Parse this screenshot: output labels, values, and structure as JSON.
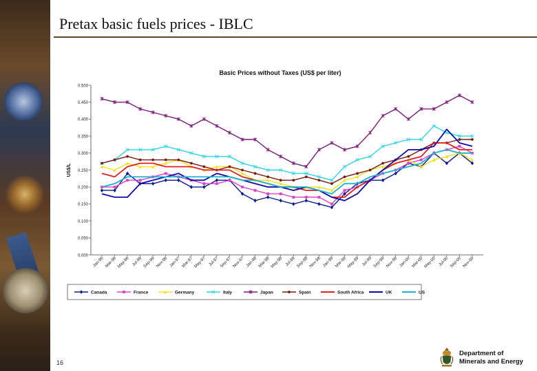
{
  "slide": {
    "title": "Pretax basic fuels prices - IBLC",
    "page_number": "16",
    "department_line1": "Department of",
    "department_line2": "Minerals and Energy"
  },
  "colors": {
    "canada": "#0a1a8c",
    "france": "#e040c8",
    "germany": "#f0e21c",
    "italy": "#2ad6e6",
    "japan": "#7a1a7a",
    "spain": "#7a1a10",
    "south_africa": "#e02020",
    "uk": "#0a0aa8",
    "us": "#18b2cc"
  },
  "chart_data": {
    "type": "line",
    "title": "Basic Prices without Taxes (US$ per liter)",
    "xlabel": "",
    "ylabel": "US$/L",
    "ylim": [
      0,
      0.5
    ],
    "yticks": [
      "0.000",
      "0.050",
      "0.100",
      "0.150",
      "0.200",
      "0.250",
      "0.300",
      "0.350",
      "0.400",
      "0.450",
      "0.500"
    ],
    "grid": false,
    "legend_position": "bottom",
    "x_tick_labels": [
      "Jan-96",
      "Mar-96",
      "May-96",
      "Jul-96",
      "Sep-96",
      "Nov-96",
      "Jan-97",
      "Mar-97",
      "May-97",
      "Jul-97",
      "Sep-97",
      "Nov-97",
      "Jan-98",
      "Mar-98",
      "May-98",
      "Jul-98",
      "Sep-98",
      "Nov-98",
      "Jan-99",
      "Mar-99",
      "May-99",
      "Jul-99",
      "Sep-99",
      "Nov-99",
      "Jan-00",
      "Mar-00",
      "May-00",
      "Jul-00",
      "Sep-00",
      "Nov-00"
    ],
    "n_points": 30,
    "series": [
      {
        "name": "Canada",
        "key": "canada",
        "marker": "diamond",
        "values": [
          0.19,
          0.19,
          0.24,
          0.21,
          0.21,
          0.22,
          0.22,
          0.2,
          0.2,
          0.22,
          0.22,
          0.18,
          0.16,
          0.17,
          0.16,
          0.15,
          0.16,
          0.15,
          0.14,
          0.18,
          0.21,
          0.22,
          0.22,
          0.24,
          0.27,
          0.26,
          0.3,
          0.27,
          0.3,
          0.27
        ]
      },
      {
        "name": "France",
        "key": "france",
        "marker": "square",
        "values": [
          0.2,
          0.2,
          0.22,
          0.22,
          0.23,
          0.24,
          0.23,
          0.22,
          0.21,
          0.21,
          0.22,
          0.2,
          0.19,
          0.18,
          0.18,
          0.17,
          0.17,
          0.17,
          0.15,
          0.19,
          0.2,
          0.22,
          0.24,
          0.25,
          0.27,
          0.28,
          0.3,
          0.31,
          0.32,
          0.3
        ]
      },
      {
        "name": "Germany",
        "key": "germany",
        "marker": "triangle",
        "values": [
          0.26,
          0.25,
          0.27,
          0.26,
          0.26,
          0.27,
          0.28,
          0.26,
          0.25,
          0.26,
          0.26,
          0.24,
          0.22,
          0.22,
          0.21,
          0.2,
          0.2,
          0.2,
          0.19,
          0.22,
          0.23,
          0.25,
          0.26,
          0.27,
          0.28,
          0.26,
          0.28,
          0.29,
          0.3,
          0.28
        ]
      },
      {
        "name": "Italy",
        "key": "italy",
        "marker": "x",
        "values": [
          0.27,
          0.28,
          0.31,
          0.31,
          0.31,
          0.32,
          0.31,
          0.3,
          0.29,
          0.29,
          0.29,
          0.27,
          0.26,
          0.25,
          0.25,
          0.24,
          0.24,
          0.23,
          0.22,
          0.26,
          0.28,
          0.29,
          0.32,
          0.33,
          0.34,
          0.34,
          0.38,
          0.36,
          0.35,
          0.35
        ]
      },
      {
        "name": "Japan",
        "key": "japan",
        "marker": "star",
        "values": [
          0.46,
          0.45,
          0.45,
          0.43,
          0.42,
          0.41,
          0.4,
          0.38,
          0.4,
          0.38,
          0.36,
          0.34,
          0.34,
          0.31,
          0.29,
          0.27,
          0.26,
          0.31,
          0.33,
          0.31,
          0.32,
          0.36,
          0.41,
          0.43,
          0.4,
          0.43,
          0.43,
          0.45,
          0.47,
          0.45
        ]
      },
      {
        "name": "Spain",
        "key": "spain",
        "marker": "circle",
        "values": [
          0.27,
          0.28,
          0.29,
          0.28,
          0.28,
          0.28,
          0.28,
          0.27,
          0.26,
          0.25,
          0.26,
          0.25,
          0.24,
          0.23,
          0.22,
          0.22,
          0.23,
          0.22,
          0.21,
          0.23,
          0.24,
          0.25,
          0.27,
          0.28,
          0.29,
          0.31,
          0.33,
          0.33,
          0.34,
          0.34
        ]
      },
      {
        "name": "South Africa",
        "key": "south_africa",
        "marker": "none",
        "values": [
          0.24,
          0.23,
          0.26,
          0.27,
          0.27,
          0.26,
          0.26,
          0.26,
          0.25,
          0.25,
          0.25,
          0.23,
          0.22,
          0.21,
          0.2,
          0.2,
          0.19,
          0.19,
          0.17,
          0.17,
          0.2,
          0.22,
          0.25,
          0.27,
          0.28,
          0.29,
          0.33,
          0.33,
          0.31,
          0.31
        ]
      },
      {
        "name": "UK",
        "key": "uk",
        "marker": "none",
        "values": [
          0.18,
          0.17,
          0.17,
          0.21,
          0.22,
          0.23,
          0.24,
          0.22,
          0.22,
          0.24,
          0.23,
          0.22,
          0.21,
          0.2,
          0.2,
          0.19,
          0.2,
          0.19,
          0.17,
          0.16,
          0.18,
          0.22,
          0.25,
          0.28,
          0.31,
          0.31,
          0.32,
          0.37,
          0.33,
          0.32
        ]
      },
      {
        "name": "US",
        "key": "us",
        "marker": "none",
        "values": [
          0.2,
          0.21,
          0.23,
          0.23,
          0.23,
          0.23,
          0.23,
          0.23,
          0.23,
          0.23,
          0.23,
          0.22,
          0.22,
          0.21,
          0.2,
          0.2,
          0.2,
          0.19,
          0.18,
          0.21,
          0.21,
          0.23,
          0.24,
          0.25,
          0.26,
          0.27,
          0.3,
          0.31,
          0.3,
          0.3
        ]
      }
    ]
  }
}
